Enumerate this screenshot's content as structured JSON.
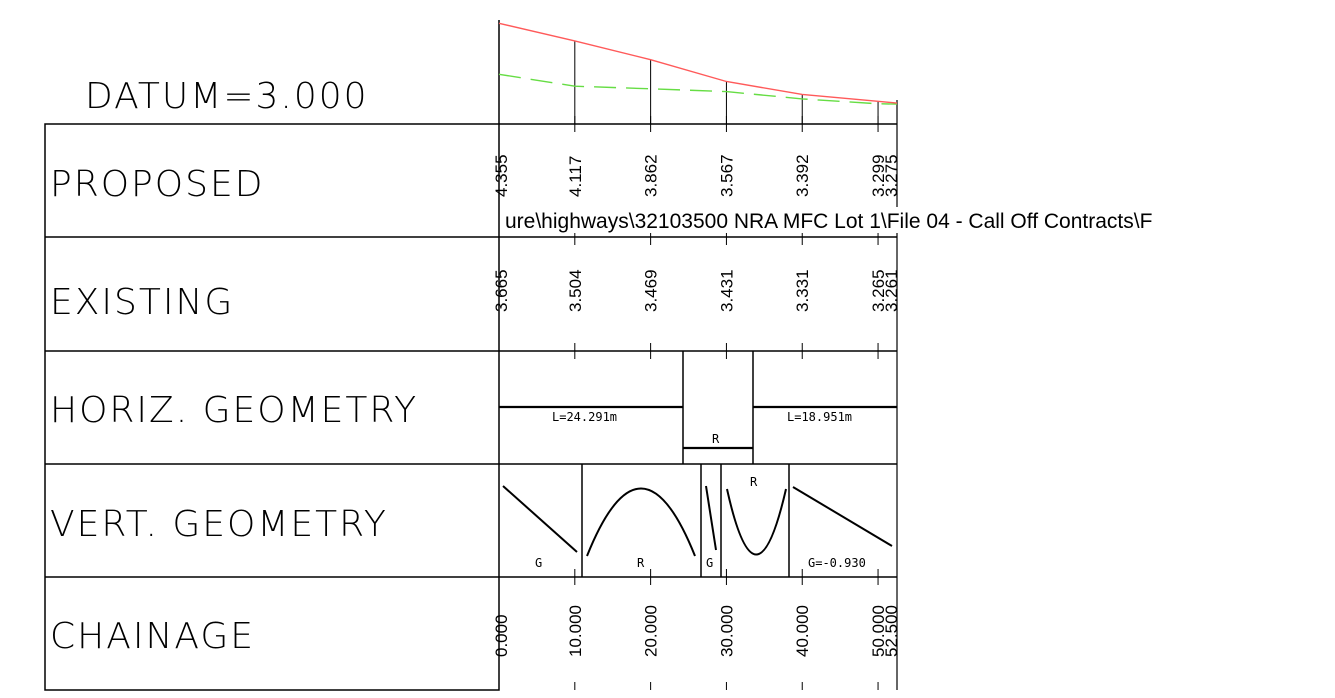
{
  "datum_label": "DATUM=3.000",
  "file_path_text": "ure\\highways\\32103500 NRA MFC Lot 1\\File 04 - Call Off Contracts\\F",
  "colors": {
    "proposed_line": "#ff5a5a",
    "existing_line": "#66dd44",
    "grid": "#000000"
  },
  "rows": [
    {
      "key": "proposed",
      "label": "PROPOSED"
    },
    {
      "key": "existing",
      "label": "EXISTING"
    },
    {
      "key": "horiz",
      "label": "HORIZ. GEOMETRY"
    },
    {
      "key": "vert",
      "label": "VERT. GEOMETRY"
    },
    {
      "key": "chainage",
      "label": "CHAINAGE"
    }
  ],
  "chart_data": {
    "type": "line",
    "x": [
      0,
      10,
      20,
      30,
      40,
      50,
      52.5
    ],
    "series": [
      {
        "values": [
          4.355,
          4.117,
          3.862,
          3.567,
          3.392,
          3.299,
          3.275
        ]
      },
      {
        "values": [
          3.665,
          3.504,
          3.469,
          3.431,
          3.331,
          3.265,
          3.261
        ]
      }
    ],
    "proposed_labels": [
      "4.355",
      "4.117",
      "3.862",
      "3.567",
      "3.392",
      "3.299",
      "3.275"
    ],
    "existing_labels": [
      "3.665",
      "3.504",
      "3.469",
      "3.431",
      "3.331",
      "3.265",
      "3.261"
    ],
    "chainage_labels": [
      "0.000",
      "10.000",
      "20.000",
      "30.000",
      "40.000",
      "50.000",
      "52.500"
    ]
  },
  "horiz_geometry": {
    "segment1": "L=24.291m",
    "curve": "R",
    "segment2": "L=18.951m"
  },
  "vert_geometry": {
    "grade1": "G",
    "curve1": "R",
    "grade2": "G",
    "curve2": "R",
    "grade3": "G=-0.930"
  }
}
